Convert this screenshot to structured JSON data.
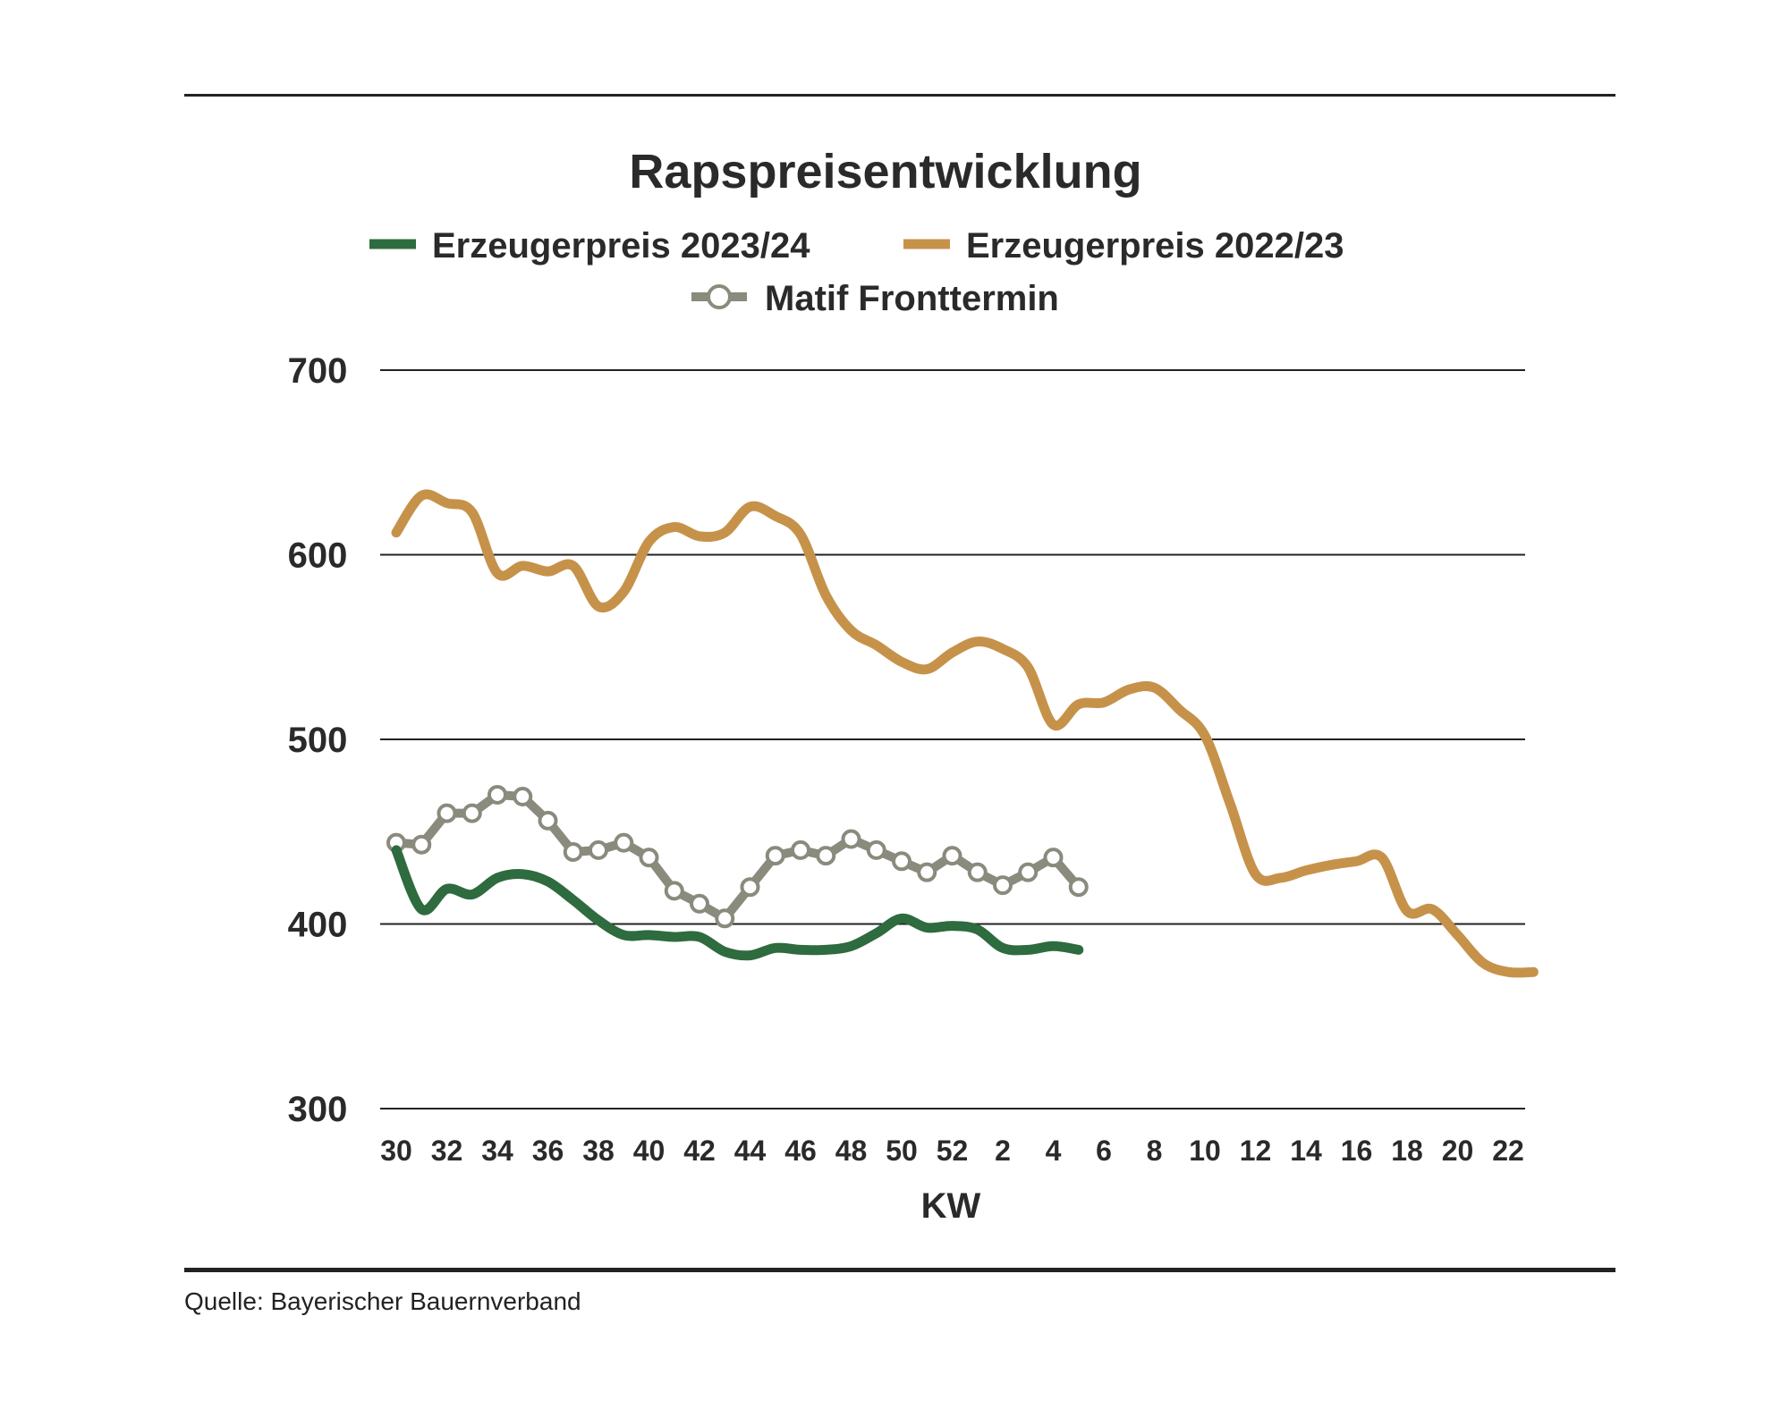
{
  "chart_data": {
    "type": "line",
    "title": "Rapspreisentwicklung",
    "xlabel": "KW",
    "ylabel": "",
    "ylim": [
      300,
      700
    ],
    "yticks": [
      300,
      400,
      500,
      600,
      700
    ],
    "grid": true,
    "legend_position": "top",
    "x_tick_labels": [
      "30",
      "32",
      "34",
      "36",
      "38",
      "40",
      "42",
      "44",
      "46",
      "48",
      "50",
      "52",
      "2",
      "4",
      "6",
      "8",
      "10",
      "12",
      "14",
      "16",
      "18",
      "20",
      "22"
    ],
    "series": [
      {
        "name": "Erzeugerpreis 2023/24",
        "color": "#2e6b3e",
        "marker": "none",
        "x": [
          "30",
          "31",
          "32",
          "33",
          "34",
          "35",
          "36",
          "37",
          "38",
          "39",
          "40",
          "41",
          "42",
          "43",
          "44",
          "45",
          "46",
          "47",
          "48",
          "49",
          "50",
          "51",
          "52",
          "1",
          "2",
          "3",
          "4",
          "5"
        ],
        "values": [
          440,
          408,
          419,
          416,
          425,
          427,
          423,
          413,
          402,
          394,
          394,
          393,
          393,
          385,
          383,
          387,
          386,
          386,
          388,
          395,
          403,
          398,
          399,
          397,
          387,
          386,
          388,
          386
        ]
      },
      {
        "name": "Erzeugerpreis 2022/23",
        "color": "#c6924a",
        "marker": "none",
        "x": [
          "30",
          "31",
          "32",
          "33",
          "34",
          "35",
          "36",
          "37",
          "38",
          "39",
          "40",
          "41",
          "42",
          "43",
          "44",
          "45",
          "46",
          "47",
          "48",
          "49",
          "50",
          "51",
          "52",
          "1",
          "2",
          "3",
          "4",
          "5",
          "6",
          "7",
          "8",
          "9",
          "10",
          "11",
          "12",
          "13",
          "14",
          "15",
          "16",
          "17",
          "18",
          "19",
          "20",
          "21",
          "22",
          "23"
        ],
        "values": [
          612,
          632,
          628,
          623,
          590,
          594,
          591,
          594,
          572,
          580,
          607,
          615,
          610,
          612,
          626,
          621,
          611,
          578,
          559,
          551,
          542,
          538,
          547,
          553,
          549,
          539,
          508,
          519,
          520,
          527,
          528,
          516,
          502,
          465,
          427,
          425,
          429,
          432,
          434,
          436,
          407,
          408,
          394,
          379,
          374,
          374
        ]
      },
      {
        "name": "Matif Fronttermin",
        "color": "#8a8a7d",
        "marker": "hollow-circle",
        "x": [
          "30",
          "31",
          "32",
          "33",
          "34",
          "35",
          "36",
          "37",
          "38",
          "39",
          "40",
          "41",
          "42",
          "43",
          "44",
          "45",
          "46",
          "47",
          "48",
          "49",
          "50",
          "51",
          "52",
          "1",
          "2",
          "3",
          "4",
          "5"
        ],
        "values": [
          444,
          443,
          460,
          460,
          470,
          469,
          456,
          439,
          440,
          444,
          436,
          418,
          411,
          403,
          420,
          437,
          440,
          437,
          446,
          440,
          434,
          428,
          437,
          428,
          421,
          428,
          436,
          420
        ]
      }
    ]
  },
  "source_note": "Quelle: Bayerischer Bauernverband"
}
